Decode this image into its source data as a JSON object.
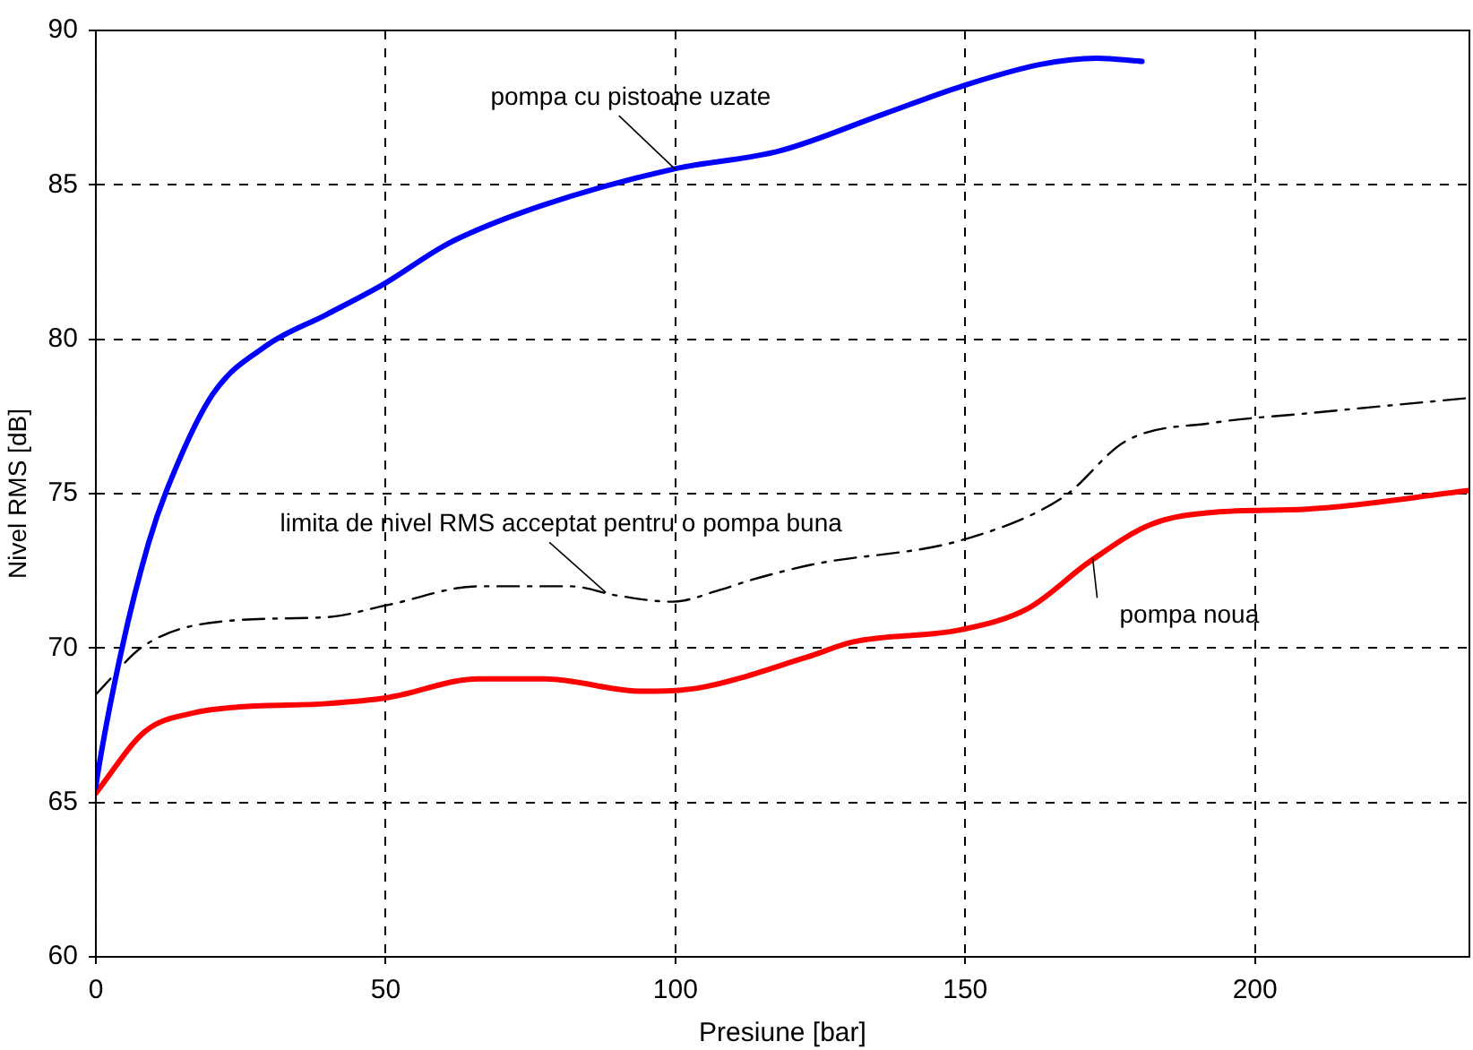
{
  "chart_data": {
    "type": "line",
    "xlabel": "Presiune [bar]",
    "ylabel": "Nivel RMS [dB]",
    "xlim": [
      0,
      237
    ],
    "ylim": [
      60,
      90
    ],
    "xticks": [
      0,
      50,
      100,
      150,
      200
    ],
    "yticks": [
      60,
      65,
      70,
      75,
      80,
      85,
      90
    ],
    "grid": true,
    "marker": "none",
    "series": [
      {
        "color": "#0000ff",
        "line_style": "solid",
        "x": [
          0,
          0.3,
          4.4,
          9.1,
          12.2,
          20.1,
          29.5,
          39.8,
          49.8,
          60.8,
          76.5,
          99.4,
          118,
          136,
          149.5,
          163,
          172.7,
          180.5
        ],
        "values": [
          65.5,
          65.9,
          69.9,
          73.4,
          75.1,
          78.2,
          79.8,
          80.8,
          81.8,
          83.1,
          84.3,
          85.5,
          86.1,
          87.3,
          88.2,
          88.9,
          89.1,
          89.0
        ]
      },
      {
        "color": "#000000",
        "line_style": "dashed",
        "x": [
          0,
          8.5,
          24.1,
          39.8,
          50.5,
          66,
          81.8,
          90,
          99.4,
          108,
          113,
          123.5,
          149.5,
          167,
          177.7,
          193,
          209,
          237
        ],
        "values": [
          68.5,
          70.1,
          70.9,
          71.0,
          71.4,
          72.0,
          72.0,
          71.7,
          71.5,
          71.9,
          72.2,
          72.7,
          73.5,
          74.9,
          76.7,
          77.3,
          77.6,
          78.1
        ]
      },
      {
        "color": "#ff0000",
        "line_style": "solid",
        "x": [
          0,
          8.5,
          16.9,
          25.4,
          39.8,
          50.5,
          66,
          77.4,
          94.4,
          103.8,
          122.6,
          130.7,
          149.5,
          161,
          171.5,
          182,
          193,
          209,
          237
        ],
        "values": [
          65.3,
          67.3,
          67.9,
          68.1,
          68.2,
          68.4,
          69.0,
          69.0,
          68.6,
          68.7,
          69.7,
          70.2,
          70.6,
          71.3,
          72.8,
          74.0,
          74.4,
          74.5,
          75.1
        ]
      }
    ],
    "annotations": [
      {
        "text": "pompa cu pistoane uzate",
        "x": 100,
        "y": 85.5
      },
      {
        "text": "limita de nivel RMS acceptat pentru o pompa buna",
        "x": 88,
        "y": 71.8
      },
      {
        "text": "pompa noua",
        "x": 172,
        "y": 72.9
      }
    ]
  }
}
